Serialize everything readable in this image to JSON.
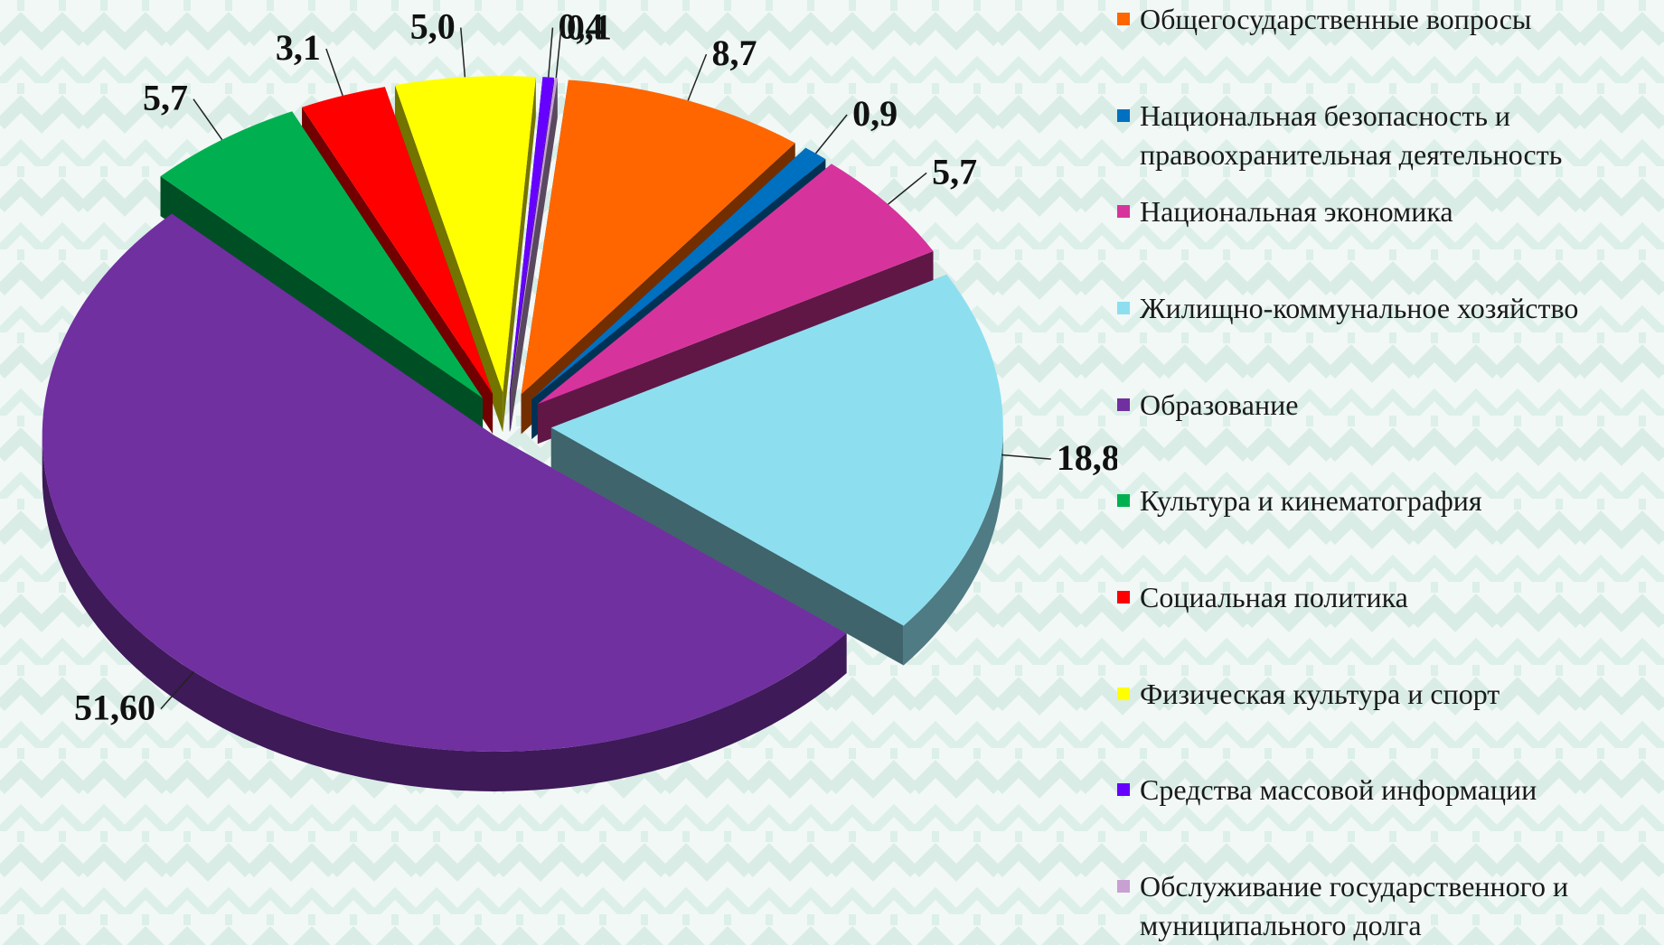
{
  "chart_data": {
    "type": "pie",
    "slices": [
      {
        "label": "Общегосударственные вопросы",
        "value": 8.7,
        "display": "8,7",
        "color": "#ff6600"
      },
      {
        "label": "Национальная безопасность и\nправоохранительная деятельность",
        "value": 0.9,
        "display": "0,9",
        "color": "#0070c0"
      },
      {
        "label": "Национальная экономика",
        "value": 5.7,
        "display": "5,7",
        "color": "#d6349c"
      },
      {
        "label": "Жилищно-коммунальное хозяйство",
        "value": 18.8,
        "display": "18,8",
        "color": "#8ddff0"
      },
      {
        "label": "Образование",
        "value": 51.6,
        "display": "51,60",
        "color": "#7030a0"
      },
      {
        "label": "Культура и кинематография",
        "value": 5.7,
        "display": "5,7",
        "color": "#00b050"
      },
      {
        "label": "Социальная политика",
        "value": 3.1,
        "display": "3,1",
        "color": "#ff0000"
      },
      {
        "label": "Физическая культура и спорт",
        "value": 5.0,
        "display": "5,0",
        "color": "#ffff00"
      },
      {
        "label": "Средства массовой информации",
        "value": 0.4,
        "display": "0,4",
        "color": "#6600ff"
      },
      {
        "label": "Обслуживание государственного и\nмуниципального долга",
        "value": 0.1,
        "display": "0,1",
        "color": "#c8a0d2"
      }
    ],
    "legend_position": "right",
    "style": "3d-exploded"
  }
}
